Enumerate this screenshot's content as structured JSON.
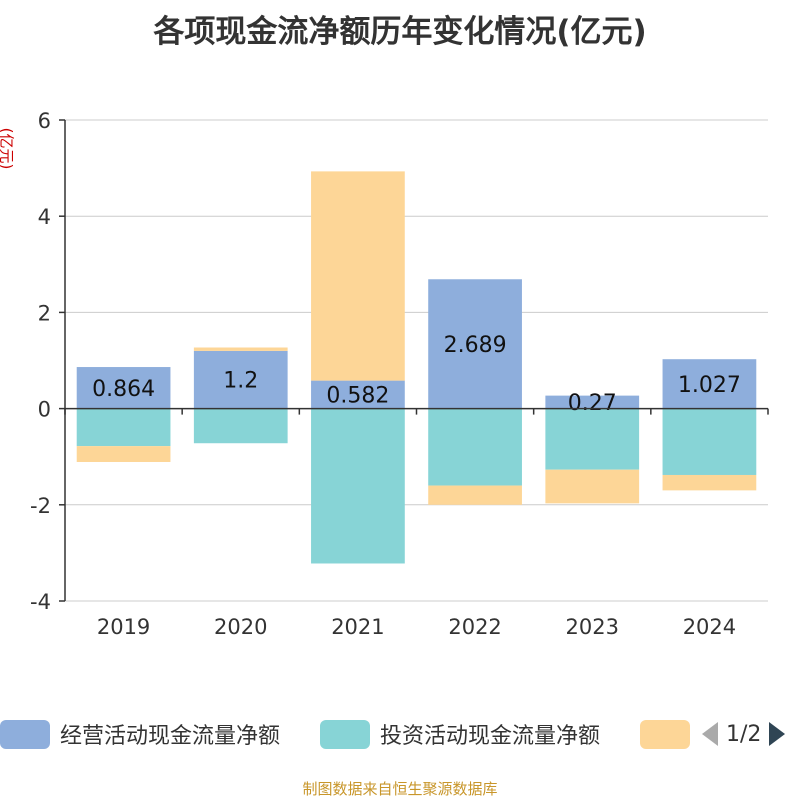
{
  "chart_data": {
    "type": "bar",
    "stacked": true,
    "title": "各项现金流净额历年变化情况(亿元)",
    "ylabel": "(亿元)",
    "ylim": [
      -4,
      6
    ],
    "yticks": [
      -4,
      -2,
      0,
      2,
      4,
      6
    ],
    "grid": true,
    "categories": [
      "2019",
      "2020",
      "2021",
      "2022",
      "2023",
      "2024"
    ],
    "series": [
      {
        "name": "经营活动现金流量净额",
        "color": "#8eaedc",
        "values": [
          0.864,
          1.2,
          0.582,
          2.689,
          0.27,
          1.027
        ],
        "labels": [
          "0.864",
          "1.2",
          "0.582",
          "2.689",
          "0.27",
          "1.027"
        ]
      },
      {
        "name": "投资活动现金流量净额",
        "color": "#87d4d6",
        "values": [
          -0.78,
          -0.72,
          -3.22,
          -1.6,
          -1.27,
          -1.38
        ]
      },
      {
        "name": "",
        "color": "#fdd697",
        "values": [
          -0.33,
          0.07,
          4.35,
          -0.4,
          -0.7,
          -0.32
        ]
      }
    ],
    "legend_position": "bottom"
  },
  "legend": {
    "items": [
      {
        "label": "经营活动现金流量净额",
        "color": "#8eaedc"
      },
      {
        "label": "投资活动现金流量净额",
        "color": "#87d4d6"
      },
      {
        "label": "",
        "color": "#fdd697"
      }
    ],
    "pager": "1/2"
  },
  "source": "制图数据来自恒生聚源数据库"
}
